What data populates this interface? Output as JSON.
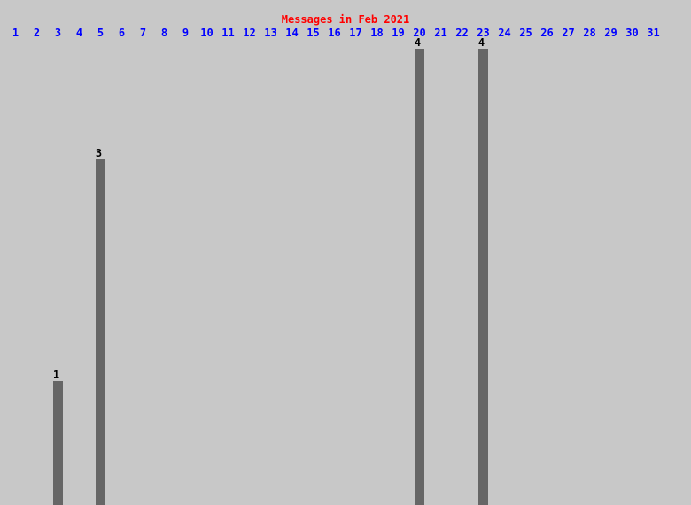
{
  "chart_data": {
    "type": "bar",
    "title": "Messages in Feb 2021",
    "categories": [
      "1",
      "2",
      "3",
      "4",
      "5",
      "6",
      "7",
      "8",
      "9",
      "10",
      "11",
      "12",
      "13",
      "14",
      "15",
      "16",
      "17",
      "18",
      "19",
      "20",
      "21",
      "22",
      "23",
      "24",
      "25",
      "26",
      "27",
      "28",
      "29",
      "30",
      "31"
    ],
    "values": [
      0,
      0,
      1,
      0,
      3,
      0,
      0,
      0,
      0,
      0,
      0,
      0,
      0,
      0,
      0,
      0,
      0,
      0,
      0,
      4,
      0,
      0,
      4,
      0,
      0,
      0,
      0,
      0,
      0,
      0,
      0
    ],
    "ylim": [
      0,
      4
    ],
    "grid": false,
    "legend": "none",
    "colors": {
      "title": "#ff0000",
      "ticks": "#0000ff",
      "bars": "#666666",
      "labels": "#000000",
      "background": "#c8c8c8"
    }
  }
}
